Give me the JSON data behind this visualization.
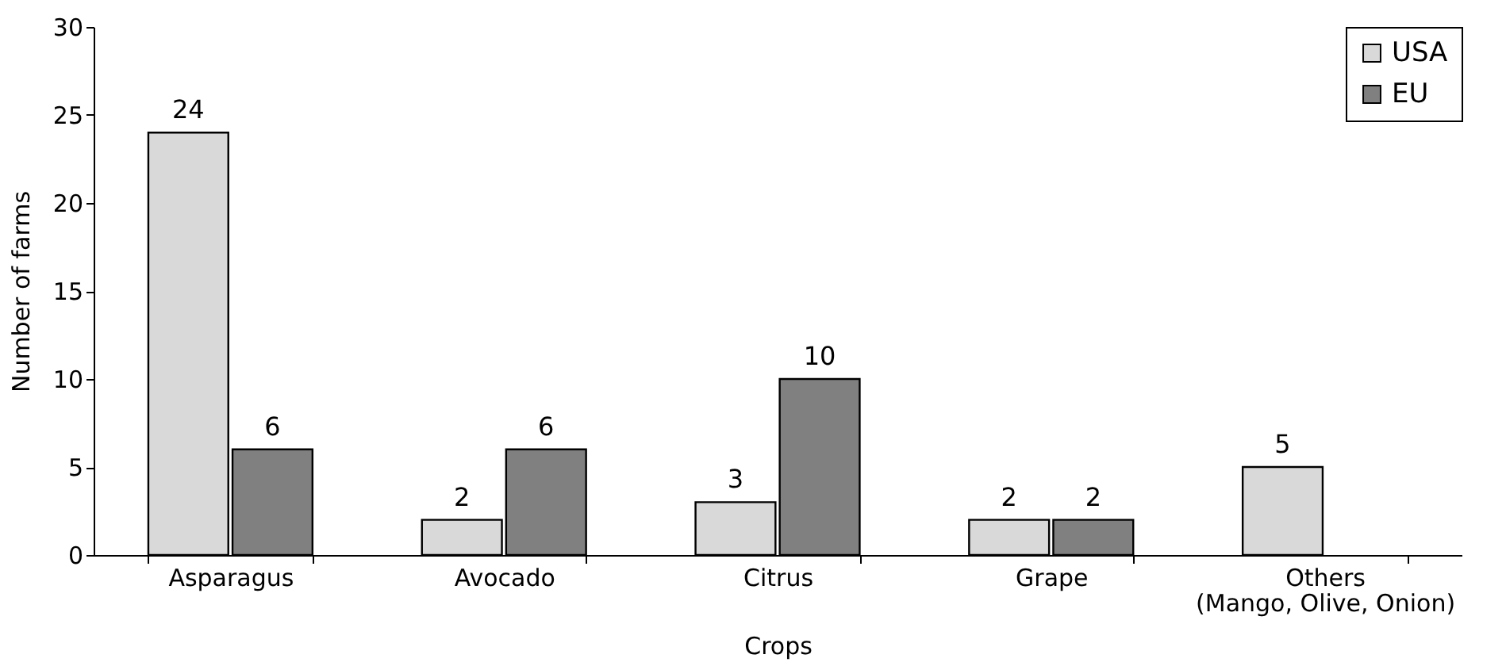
{
  "chart_data": {
    "type": "bar",
    "xlabel": "Crops",
    "ylabel": "Number of farms",
    "categories": [
      "Asparagus",
      "Avocado",
      "Citrus",
      "Grape",
      "Others\n(Mango, Olive, Onion)"
    ],
    "series": [
      {
        "name": "USA",
        "color": "#d9d9d9",
        "values": [
          24,
          2,
          3,
          2,
          5
        ]
      },
      {
        "name": "EU",
        "color": "#808080",
        "values": [
          6,
          6,
          10,
          2,
          null
        ]
      }
    ],
    "ylim": [
      0,
      30
    ],
    "yticks": [
      0,
      5,
      10,
      15,
      20,
      25,
      30
    ],
    "grid": false,
    "legend": "top right",
    "data_labels": true
  }
}
